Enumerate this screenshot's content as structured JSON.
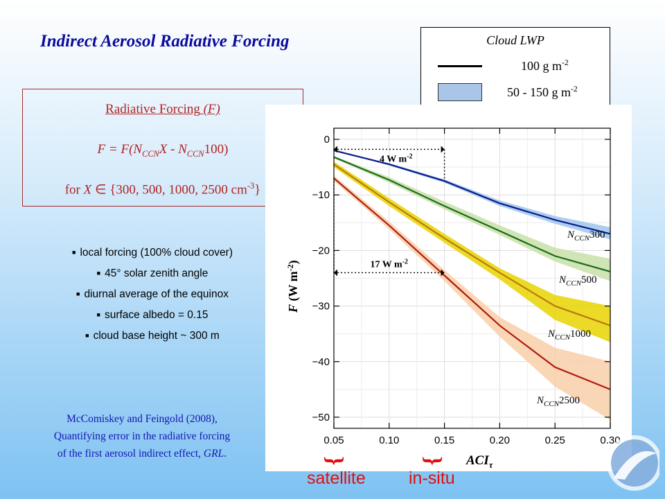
{
  "slide": {
    "title": "Indirect Aerosol Radiative Forcing",
    "formula_heading": "Radiative Forcing",
    "formula_heading_var": "(F)",
    "formula_parts": {
      "lhs": "F = F(N",
      "sub1": "CCN",
      "mid": "X - N",
      "sub2": "CCN",
      "end": "100)"
    },
    "for_parts": {
      "prefix": "for ",
      "var": "X",
      "member": " ∈ ",
      "set": "{300, 500, 1000, 2500 cm",
      "sup": "-3",
      "close": "}"
    },
    "bullets": [
      "local forcing (100% cloud cover)",
      "45° solar zenith angle",
      "diurnal average of the equinox",
      "surface albedo = 0.15",
      "cloud base height ~ 300 m"
    ],
    "citation": {
      "line1": "McComiskey and Feingold (2008),",
      "line2": "Quantifying error in the radiative forcing",
      "line3_prefix": "of the first aerosol indirect effect, ",
      "line3_journal": "GRL",
      "line3_suffix": "."
    },
    "bottom_labels": {
      "left": "satellite",
      "right": "in-situ"
    }
  },
  "legend": {
    "title": "Cloud LWP",
    "line_label": "100 g m",
    "line_label_sup": "-2",
    "band_label": "50 - 150 g m",
    "band_label_sup": "-2"
  },
  "chart_data": {
    "type": "line",
    "xlabel": "ACI",
    "xlabel_sub": "τ",
    "ylabel": "F (W m",
    "ylabel_sup": "-2",
    "ylabel_close": ")",
    "xlim": [
      0.05,
      0.3
    ],
    "ylim": [
      -52,
      2
    ],
    "x_ticks": [
      "0.05",
      "0.10",
      "0.15",
      "0.20",
      "0.25",
      "0.30"
    ],
    "y_ticks": [
      "0",
      "−10",
      "−20",
      "−30",
      "−40",
      "−50"
    ],
    "x_tick_values": [
      0.05,
      0.1,
      0.15,
      0.2,
      0.25,
      0.3
    ],
    "y_tick_values": [
      0,
      -10,
      -20,
      -30,
      -40,
      -50
    ],
    "grid": true,
    "x": [
      0.05,
      0.1,
      0.15,
      0.2,
      0.25,
      0.3
    ],
    "series": [
      {
        "name": "N",
        "name_sub": "CCN",
        "name_suffix": "300",
        "color": "#0a1a8c",
        "band_color": "#9ec6ec",
        "values": [
          -2.0,
          -4.5,
          -7.5,
          -11.5,
          -14.5,
          -17.0
        ],
        "band_upper": [
          -2.0,
          -4.3,
          -7.2,
          -11.0,
          -13.8,
          -15.8
        ],
        "band_lower": [
          -2.0,
          -4.7,
          -7.8,
          -12.0,
          -15.2,
          -18.0
        ]
      },
      {
        "name": "N",
        "name_sub": "CCN",
        "name_suffix": "500",
        "color": "#1a6a1a",
        "band_color": "#c7e0a8",
        "values": [
          -3.2,
          -7.3,
          -12.0,
          -16.5,
          -21.0,
          -23.8
        ],
        "band_upper": [
          -3.0,
          -6.8,
          -11.2,
          -15.5,
          -19.5,
          -21.5
        ],
        "band_lower": [
          -3.4,
          -7.8,
          -12.6,
          -17.2,
          -22.0,
          -25.5
        ]
      },
      {
        "name": "N",
        "name_sub": "CCN",
        "name_suffix": "1000",
        "color": "#b87a10",
        "band_color": "#e8d400",
        "values": [
          -4.5,
          -11.3,
          -17.8,
          -24.0,
          -30.0,
          -33.5
        ],
        "band_upper": [
          -4.0,
          -10.6,
          -17.0,
          -23.2,
          -28.0,
          -30.0
        ],
        "band_lower": [
          -5.0,
          -12.0,
          -18.6,
          -25.2,
          -32.5,
          -36.5
        ]
      },
      {
        "name": "N",
        "name_sub": "CCN",
        "name_suffix": "2500",
        "color": "#b01a10",
        "band_color": "#f8cfa8",
        "values": [
          -7.0,
          -15.5,
          -24.5,
          -33.5,
          -41.0,
          -45.0
        ],
        "band_upper": [
          -6.5,
          -14.8,
          -23.5,
          -32.0,
          -37.5,
          -40.0
        ],
        "band_lower": [
          -7.5,
          -16.2,
          -25.5,
          -35.5,
          -44.5,
          -50.5
        ]
      }
    ],
    "annotations": [
      {
        "text": "4 W m",
        "sup": "-2",
        "x0": 0.05,
        "x1": 0.15,
        "y": -1.8,
        "y_drop_to": -7.5
      },
      {
        "text": "17 W m",
        "sup": "-2",
        "x0": 0.05,
        "x1": 0.15,
        "y": -24.0,
        "y_drop_to": -7.0
      }
    ]
  }
}
